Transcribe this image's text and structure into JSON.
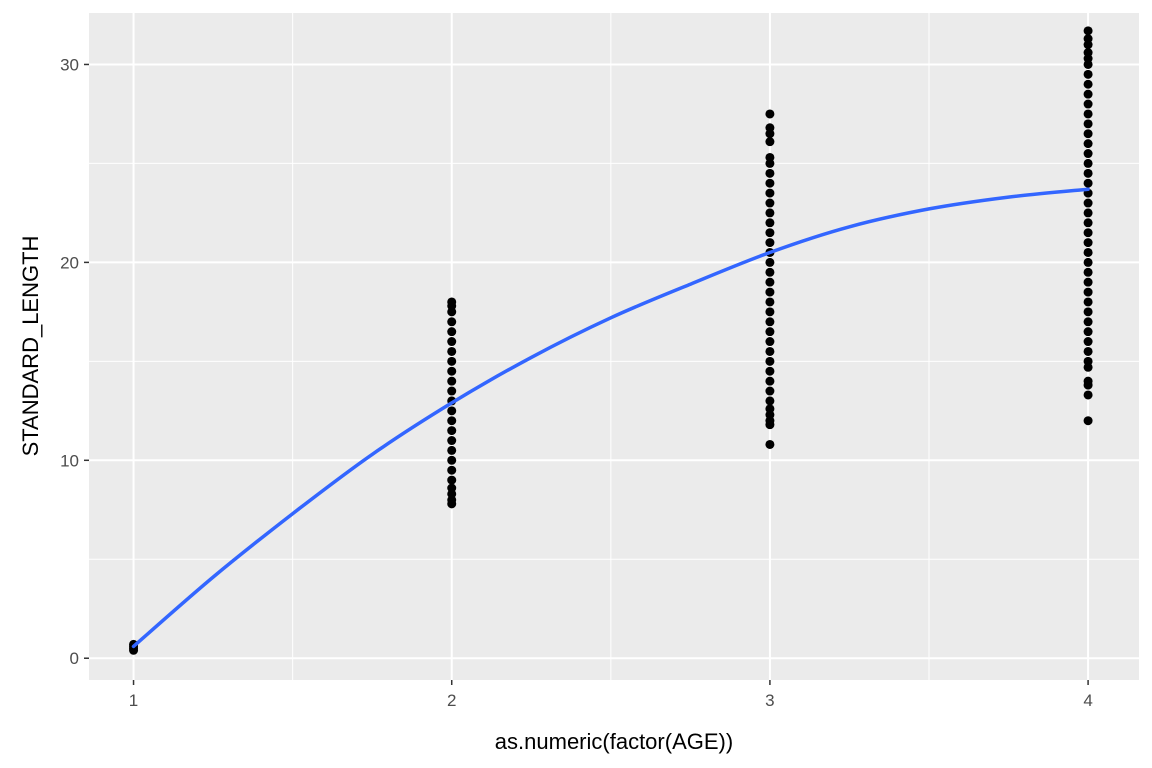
{
  "chart_data": {
    "type": "scatter",
    "title": "",
    "xlabel": "as.numeric(factor(AGE))",
    "ylabel": "STANDARD_LENGTH",
    "xlim": [
      0.86,
      4.16
    ],
    "ylim": [
      -1.1,
      32.6
    ],
    "x_ticks": [
      1,
      2,
      3,
      4
    ],
    "x_tick_labels": [
      "1",
      "2",
      "3",
      "4"
    ],
    "y_ticks": [
      0,
      10,
      20,
      30
    ],
    "y_tick_labels": [
      "0",
      "10",
      "20",
      "30"
    ],
    "grid": true,
    "legend": "none",
    "colors": {
      "panel_background": "#ebebeb",
      "grid": "#ffffff",
      "points": "#000000",
      "smooth_line": "#3366ff"
    },
    "series": [
      {
        "kind": "points",
        "groups": [
          {
            "x": 1,
            "values": [
              0.4,
              0.5,
              0.6,
              0.7
            ]
          },
          {
            "x": 2,
            "values": [
              7.8,
              8.0,
              8.3,
              8.6,
              9.0,
              9.5,
              10.0,
              10.5,
              11.0,
              11.5,
              12.0,
              12.5,
              13.0,
              13.5,
              14.0,
              14.5,
              15.0,
              15.5,
              16.0,
              16.5,
              17.0,
              17.5,
              17.8,
              18.0
            ]
          },
          {
            "x": 3,
            "values": [
              10.8,
              11.8,
              12.0,
              12.3,
              12.6,
              13.0,
              13.5,
              14.0,
              14.5,
              15.0,
              15.5,
              16.0,
              16.5,
              17.0,
              17.5,
              18.0,
              18.5,
              19.0,
              19.5,
              20.0,
              20.5,
              21.0,
              21.5,
              22.0,
              22.5,
              23.0,
              23.5,
              24.0,
              24.5,
              25.0,
              25.3,
              26.1,
              26.5,
              26.8,
              27.5
            ]
          },
          {
            "x": 4,
            "values": [
              12.0,
              13.3,
              13.8,
              14.0,
              14.7,
              15.0,
              15.5,
              16.0,
              16.5,
              17.0,
              17.5,
              18.0,
              18.5,
              19.0,
              19.5,
              20.0,
              20.5,
              21.0,
              21.5,
              22.0,
              22.5,
              23.0,
              23.5,
              24.0,
              24.5,
              25.0,
              25.5,
              26.0,
              26.5,
              27.0,
              27.5,
              28.0,
              28.5,
              29.0,
              29.5,
              30.0,
              30.3,
              30.6,
              31.0,
              31.3,
              31.7
            ]
          }
        ]
      },
      {
        "kind": "smooth",
        "x": [
          1.0,
          1.25,
          1.5,
          1.75,
          2.0,
          2.25,
          2.5,
          2.75,
          3.0,
          3.25,
          3.5,
          3.75,
          4.0
        ],
        "y": [
          0.6,
          4.1,
          7.3,
          10.3,
          12.9,
          15.2,
          17.2,
          18.9,
          20.5,
          21.8,
          22.7,
          23.3,
          23.7
        ]
      }
    ]
  }
}
